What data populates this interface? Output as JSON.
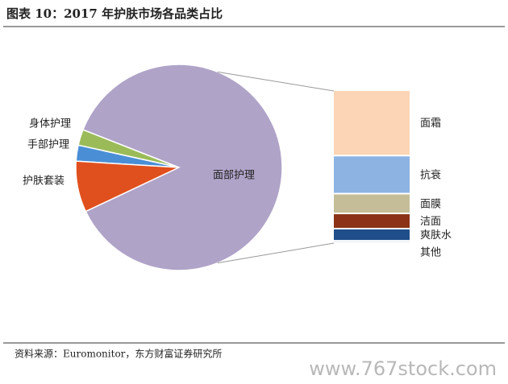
{
  "title": "图表 10：2017 年护肤市场各品类占比",
  "chart_data": {
    "type": "pie",
    "categories": [
      "身体护理",
      "手部护理",
      "护肤套装",
      "面部护理"
    ],
    "values": [
      2.5,
      2.5,
      8,
      87
    ],
    "colors": [
      "#9bbb59",
      "#4a8fd6",
      "#e0501e",
      "#b0a3c8"
    ],
    "breakdown": {
      "categories": [
        "面霜",
        "抗衰",
        "面膜",
        "洁面",
        "爽肤水",
        "其他"
      ],
      "values": [
        43,
        25,
        13,
        10,
        8,
        1
      ],
      "colors": [
        "#fbd5b5",
        "#8db3e2",
        "#c4bd97",
        "#8b3217",
        "#1f4e8a",
        "#e4e4ee"
      ]
    }
  },
  "source": "资料来源：Euromonitor，东方财富证券研究所",
  "watermark": "www.767stock.com"
}
